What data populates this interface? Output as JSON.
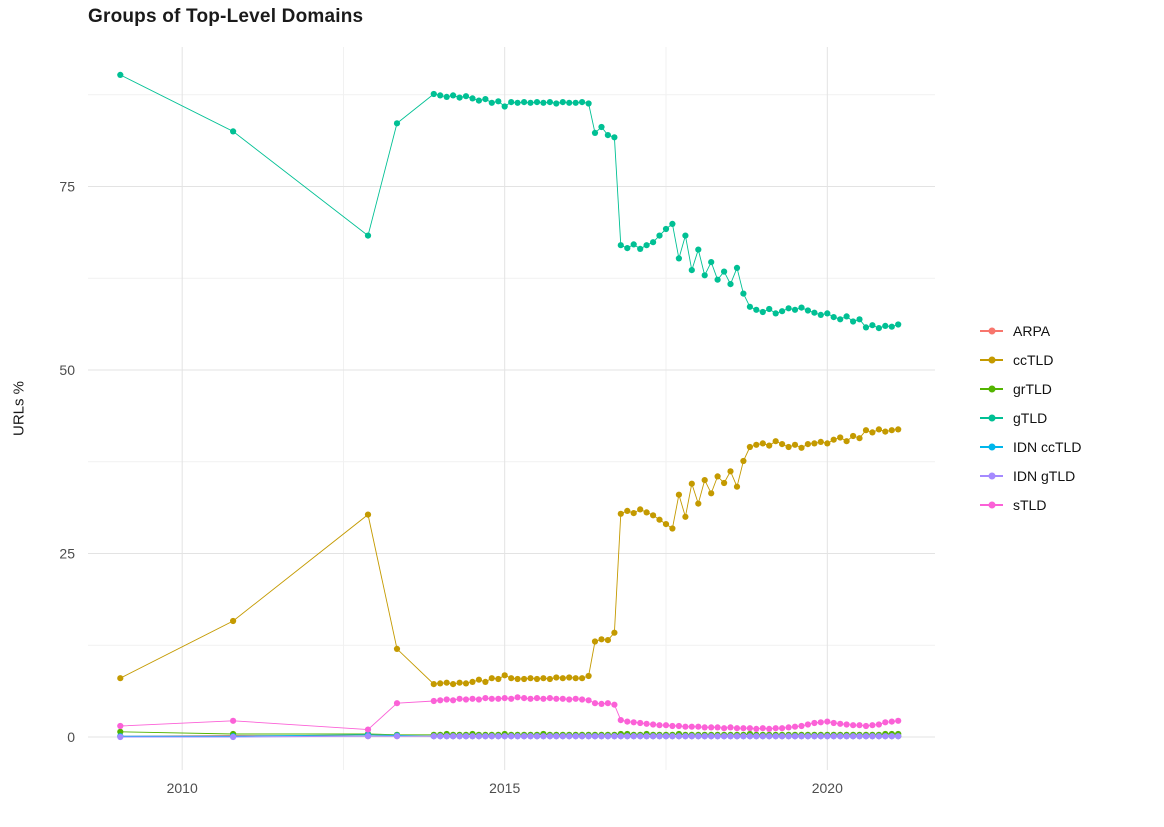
{
  "chart_data": {
    "type": "line",
    "title": "Groups of Top-Level Domains",
    "xlabel": "",
    "ylabel": "URLs %",
    "legend_position": "right",
    "grid": true,
    "xlim": [
      2008.54,
      2021.67
    ],
    "ylim": [
      -4.5,
      94
    ],
    "x_ticks": [
      2010,
      2015,
      2020
    ],
    "y_ticks": [
      0,
      25,
      50,
      75
    ],
    "x_minor_ticks": [
      2012.5,
      2017.5
    ],
    "y_minor_ticks": [
      12.5,
      37.5,
      62.5,
      87.5
    ],
    "x": [
      2009.04,
      2010.79,
      2012.88,
      2013.33,
      2013.9,
      2014.0,
      2014.1,
      2014.2,
      2014.3,
      2014.4,
      2014.5,
      2014.6,
      2014.7,
      2014.8,
      2014.9,
      2015.0,
      2015.1,
      2015.2,
      2015.3,
      2015.4,
      2015.5,
      2015.6,
      2015.7,
      2015.8,
      2015.9,
      2016.0,
      2016.1,
      2016.2,
      2016.3,
      2016.4,
      2016.5,
      2016.6,
      2016.7,
      2016.8,
      2016.9,
      2017.0,
      2017.1,
      2017.2,
      2017.3,
      2017.4,
      2017.5,
      2017.6,
      2017.7,
      2017.8,
      2017.9,
      2018.0,
      2018.1,
      2018.2,
      2018.3,
      2018.4,
      2018.5,
      2018.6,
      2018.7,
      2018.8,
      2018.9,
      2019.0,
      2019.1,
      2019.2,
      2019.3,
      2019.4,
      2019.5,
      2019.6,
      2019.7,
      2019.8,
      2019.9,
      2020.0,
      2020.1,
      2020.2,
      2020.3,
      2020.4,
      2020.5,
      2020.6,
      2020.7,
      2020.8,
      2020.9,
      2021.0,
      2021.1
    ],
    "series": [
      {
        "name": "ARPA",
        "color": "#F8766D",
        "values": [
          0.1,
          0.2,
          0.1,
          0.1,
          0.1,
          0.1,
          0.1,
          0.1,
          0.1,
          0.1,
          0.1,
          0.1,
          0.1,
          0.1,
          0.1,
          0.1,
          0.1,
          0.1,
          0.1,
          0.1,
          0.1,
          0.1,
          0.1,
          0.1,
          0.1,
          0.1,
          0.1,
          0.1,
          0.1,
          0.1,
          0.1,
          0.1,
          0.1,
          0.1,
          0.1,
          0.1,
          0.1,
          0.1,
          0.1,
          0.1,
          0.1,
          0.1,
          0.1,
          0.1,
          0.1,
          0.1,
          0.1,
          0.1,
          0.1,
          0.1,
          0.1,
          0.1,
          0.1,
          0.1,
          0.1,
          0.1,
          0.1,
          0.1,
          0.1,
          0.1,
          0.1,
          0.1,
          0.1,
          0.1,
          0.1,
          0.1,
          0.1,
          0.1,
          0.1,
          0.1,
          0.1,
          0.1,
          0.1,
          0.1,
          0.1,
          0.1,
          0.1
        ]
      },
      {
        "name": "ccTLD",
        "color": "#C49A00",
        "values": [
          8.0,
          15.8,
          30.3,
          12.0,
          7.2,
          7.3,
          7.4,
          7.2,
          7.4,
          7.3,
          7.5,
          7.8,
          7.5,
          8.0,
          7.9,
          8.4,
          8.0,
          7.9,
          7.9,
          8.0,
          7.9,
          8.0,
          7.9,
          8.1,
          8.0,
          8.1,
          8.0,
          8.0,
          8.3,
          13.0,
          13.3,
          13.2,
          14.2,
          30.4,
          30.8,
          30.5,
          31.0,
          30.6,
          30.2,
          29.6,
          29.0,
          28.4,
          33.0,
          30.0,
          34.5,
          31.8,
          35.0,
          33.2,
          35.5,
          34.6,
          36.2,
          34.1,
          37.6,
          39.5,
          39.8,
          40.0,
          39.7,
          40.3,
          39.9,
          39.5,
          39.8,
          39.4,
          39.9,
          40.0,
          40.2,
          40.0,
          40.5,
          40.8,
          40.3,
          41.0,
          40.7,
          41.8,
          41.5,
          41.9,
          41.6,
          41.8,
          41.9
        ]
      },
      {
        "name": "grTLD",
        "color": "#53B400",
        "values": [
          0.7,
          0.4,
          0.4,
          0.3,
          0.3,
          0.3,
          0.4,
          0.3,
          0.3,
          0.3,
          0.4,
          0.3,
          0.3,
          0.3,
          0.3,
          0.4,
          0.3,
          0.3,
          0.3,
          0.3,
          0.3,
          0.4,
          0.3,
          0.3,
          0.3,
          0.3,
          0.3,
          0.3,
          0.3,
          0.3,
          0.3,
          0.3,
          0.3,
          0.4,
          0.4,
          0.3,
          0.3,
          0.4,
          0.3,
          0.3,
          0.3,
          0.3,
          0.4,
          0.3,
          0.3,
          0.3,
          0.3,
          0.3,
          0.3,
          0.3,
          0.3,
          0.3,
          0.3,
          0.4,
          0.3,
          0.3,
          0.3,
          0.3,
          0.3,
          0.3,
          0.3,
          0.3,
          0.3,
          0.3,
          0.3,
          0.3,
          0.3,
          0.3,
          0.3,
          0.3,
          0.3,
          0.3,
          0.3,
          0.3,
          0.4,
          0.4,
          0.4
        ]
      },
      {
        "name": "gTLD",
        "color": "#00C094",
        "values": [
          90.2,
          82.5,
          68.3,
          83.6,
          87.6,
          87.4,
          87.2,
          87.4,
          87.1,
          87.3,
          87.0,
          86.7,
          86.9,
          86.4,
          86.6,
          85.9,
          86.5,
          86.4,
          86.5,
          86.4,
          86.5,
          86.4,
          86.5,
          86.3,
          86.5,
          86.4,
          86.4,
          86.5,
          86.3,
          82.3,
          83.1,
          82.0,
          81.7,
          67.0,
          66.6,
          67.1,
          66.5,
          67.0,
          67.4,
          68.3,
          69.2,
          69.9,
          65.2,
          68.3,
          63.6,
          66.4,
          62.9,
          64.7,
          62.3,
          63.4,
          61.7,
          63.9,
          60.4,
          58.6,
          58.2,
          57.9,
          58.3,
          57.7,
          58.0,
          58.4,
          58.2,
          58.5,
          58.1,
          57.8,
          57.5,
          57.7,
          57.2,
          56.9,
          57.3,
          56.6,
          56.9,
          55.8,
          56.1,
          55.7,
          56.0,
          55.9,
          56.2
        ]
      },
      {
        "name": "IDN ccTLD",
        "color": "#00B6EB",
        "values": [
          0.1,
          0.1,
          0.3,
          0.2,
          0.1,
          0.1,
          0.1,
          0.1,
          0.1,
          0.1,
          0.1,
          0.1,
          0.1,
          0.1,
          0.1,
          0.1,
          0.1,
          0.1,
          0.1,
          0.1,
          0.1,
          0.1,
          0.1,
          0.1,
          0.1,
          0.1,
          0.1,
          0.1,
          0.1,
          0.1,
          0.1,
          0.1,
          0.1,
          0.1,
          0.1,
          0.1,
          0.1,
          0.1,
          0.1,
          0.1,
          0.1,
          0.1,
          0.1,
          0.1,
          0.1,
          0.1,
          0.1,
          0.1,
          0.1,
          0.1,
          0.1,
          0.1,
          0.1,
          0.1,
          0.1,
          0.1,
          0.1,
          0.1,
          0.1,
          0.1,
          0.1,
          0.1,
          0.1,
          0.1,
          0.1,
          0.1,
          0.1,
          0.1,
          0.1,
          0.1,
          0.1,
          0.1,
          0.1,
          0.1,
          0.1,
          0.1,
          0.1
        ]
      },
      {
        "name": "IDN gTLD",
        "color": "#A58AFF",
        "values": [
          0.0,
          0.0,
          0.1,
          0.1,
          0.1,
          0.1,
          0.1,
          0.1,
          0.1,
          0.1,
          0.1,
          0.1,
          0.1,
          0.1,
          0.1,
          0.1,
          0.1,
          0.1,
          0.1,
          0.1,
          0.1,
          0.1,
          0.1,
          0.1,
          0.1,
          0.1,
          0.1,
          0.1,
          0.1,
          0.1,
          0.1,
          0.1,
          0.1,
          0.1,
          0.1,
          0.1,
          0.1,
          0.1,
          0.1,
          0.1,
          0.1,
          0.1,
          0.1,
          0.1,
          0.1,
          0.1,
          0.1,
          0.1,
          0.1,
          0.1,
          0.1,
          0.1,
          0.1,
          0.1,
          0.1,
          0.1,
          0.1,
          0.1,
          0.1,
          0.1,
          0.1,
          0.1,
          0.1,
          0.1,
          0.1,
          0.1,
          0.1,
          0.1,
          0.1,
          0.1,
          0.1,
          0.1,
          0.1,
          0.1,
          0.1,
          0.1,
          0.1
        ]
      },
      {
        "name": "sTLD",
        "color": "#FB61D7",
        "values": [
          1.5,
          2.2,
          1.0,
          4.6,
          4.9,
          5.0,
          5.1,
          5.0,
          5.2,
          5.1,
          5.2,
          5.1,
          5.3,
          5.2,
          5.2,
          5.3,
          5.2,
          5.4,
          5.3,
          5.2,
          5.3,
          5.2,
          5.3,
          5.2,
          5.2,
          5.1,
          5.2,
          5.1,
          5.0,
          4.6,
          4.5,
          4.6,
          4.4,
          2.3,
          2.1,
          2.0,
          1.9,
          1.8,
          1.7,
          1.6,
          1.6,
          1.5,
          1.5,
          1.4,
          1.4,
          1.4,
          1.3,
          1.3,
          1.3,
          1.2,
          1.3,
          1.2,
          1.2,
          1.2,
          1.1,
          1.2,
          1.1,
          1.2,
          1.2,
          1.3,
          1.4,
          1.5,
          1.7,
          1.9,
          2.0,
          2.1,
          1.9,
          1.8,
          1.7,
          1.6,
          1.6,
          1.5,
          1.6,
          1.7,
          2.0,
          2.1,
          2.2
        ]
      }
    ]
  }
}
